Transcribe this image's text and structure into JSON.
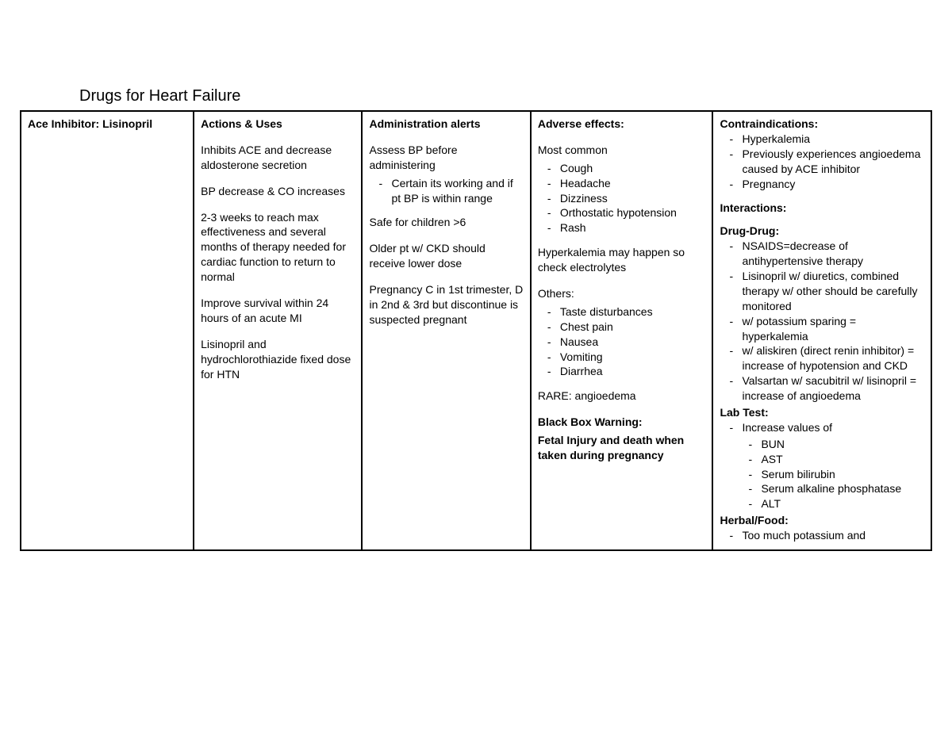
{
  "page": {
    "title": "Drugs for Heart Failure",
    "background_color": "#ffffff",
    "text_color": "#000000",
    "border_color": "#000000",
    "font_family": "Arial",
    "title_fontsize_pt": 15,
    "body_fontsize_pt": 10.5
  },
  "table": {
    "columns": [
      {
        "header": "Ace Inhibitor: Lisinopril",
        "width_pct": 19
      },
      {
        "header": "Actions & Uses",
        "width_pct": 18.5
      },
      {
        "header": "Administration alerts",
        "width_pct": 18.5
      },
      {
        "header": "Adverse effects:",
        "width_pct": 20
      },
      {
        "header": "Contraindications:",
        "width_pct": 24
      }
    ]
  },
  "col1": {
    "header": "Ace Inhibitor: Lisinopril"
  },
  "col2": {
    "header": "Actions & Uses",
    "p1": "Inhibits ACE and decrease aldosterone secretion",
    "p2": "BP decrease & CO increases",
    "p3": "2-3 weeks to reach max effectiveness and several months of therapy needed for cardiac function to return to normal",
    "p4": "Improve survival within 24 hours of an acute MI",
    "p5": "Lisinopril and hydrochlorothiazide fixed dose for HTN"
  },
  "col3": {
    "header": "Administration alerts",
    "p1": "Assess BP before administering",
    "p1_items": [
      "Certain its working and if pt BP is within range"
    ],
    "p2": "Safe for children >6",
    "p3": "Older pt w/ CKD should receive lower dose",
    "p4": "Pregnancy C in 1st trimester, D in 2nd & 3rd but discontinue is suspected pregnant"
  },
  "col4": {
    "header": "Adverse effects:",
    "most_common_label": "Most common",
    "most_common_items": [
      "Cough",
      "Headache",
      "Dizziness",
      "Orthostatic hypotension",
      "Rash"
    ],
    "hyperk": "Hyperkalemia may happen so check electrolytes",
    "others_label": "Others:",
    "others_items": [
      "Taste disturbances",
      "Chest pain",
      "Nausea",
      "Vomiting",
      "Diarrhea"
    ],
    "rare": "RARE: angioedema",
    "bbw_label": "Black Box Warning:",
    "bbw_text": "Fetal Injury and death when taken during pregnancy"
  },
  "col5": {
    "header": "Contraindications:",
    "contra_items": [
      "Hyperkalemia",
      "Previously experiences angioedema caused by ACE inhibitor",
      "Pregnancy"
    ],
    "interactions_label": "Interactions:",
    "drugdrug_label": "Drug-Drug:",
    "drugdrug_items": [
      "NSAIDS=decrease of antihypertensive therapy",
      "Lisinopril w/ diuretics, combined therapy w/ other should be carefully monitored",
      "w/ potassium sparing = hyperkalemia",
      "w/ aliskiren (direct renin inhibitor) = increase of hypotension and CKD",
      "Valsartan w/ sacubitril w/ lisinopril = increase of angioedema"
    ],
    "labtest_label": "Lab Test:",
    "labtest_intro": "Increase values of",
    "labtest_items": [
      "BUN",
      "AST",
      "Serum bilirubin",
      "Serum alkaline phosphatase",
      "ALT"
    ],
    "herbal_label": "Herbal/Food:",
    "herbal_items": [
      "Too much potassium and"
    ]
  }
}
